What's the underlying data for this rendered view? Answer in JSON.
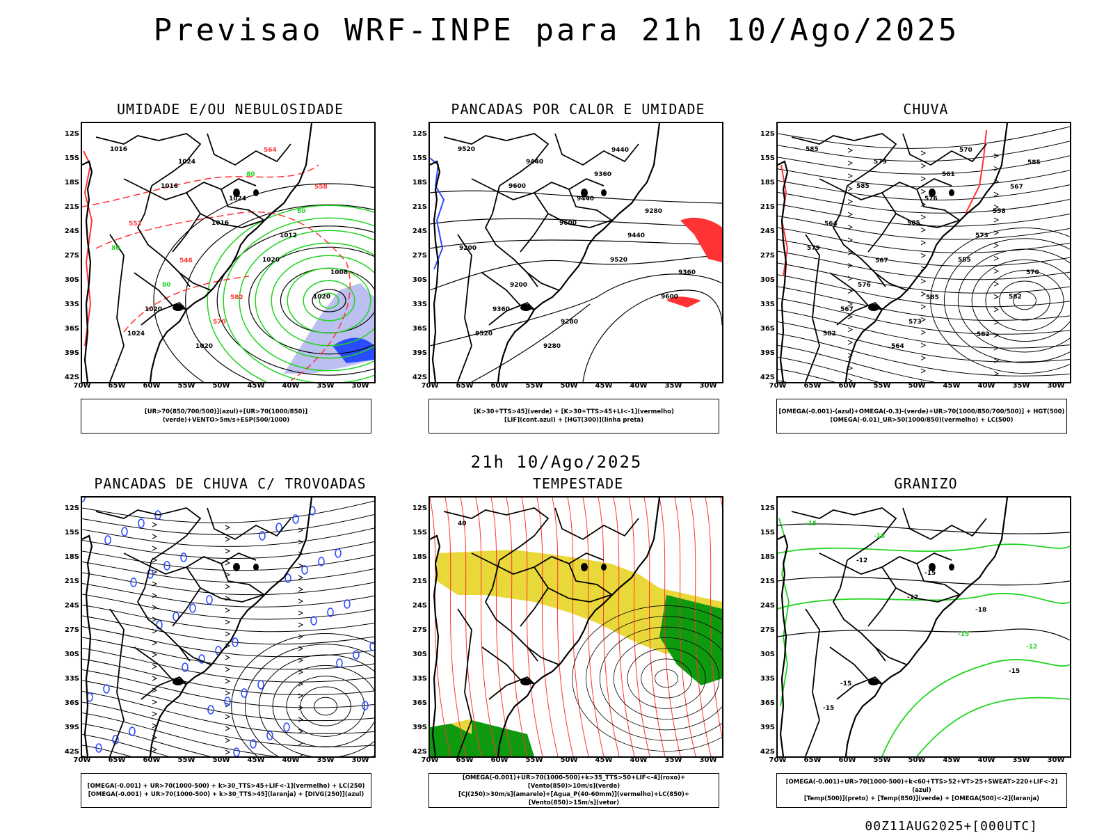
{
  "title": "Previsao WRF-INPE  para 21h 10/Ago/2025",
  "mid_title": "21h 10/Ago/2025",
  "footer": "00Z11AUG2025+[000UTC]",
  "lat_labels": [
    "12S",
    "15S",
    "18S",
    "21S",
    "24S",
    "27S",
    "30S",
    "33S",
    "36S",
    "39S",
    "42S"
  ],
  "lon_labels": [
    "70W",
    "65W",
    "60W",
    "55W",
    "50W",
    "45W",
    "40W",
    "35W",
    "30W"
  ],
  "colors": {
    "green": "#1fd41f",
    "red": "#ff3333",
    "blue": "#2a4bff",
    "lightblue": "#aab0ee",
    "yellow": "#e8d83a",
    "darkgreen": "#0e9a0e",
    "teal": "#1a5a55"
  },
  "panels": [
    {
      "id": "umidade",
      "title": "UMIDADE E/OU NEBULOSIDADE",
      "legend": [
        "[UR>70(850/700/500)](azul)+[UR>70(1000/850)](verde)+VENTO>5m/s+ESP(500/1000)"
      ],
      "contour_labels": [
        "1016",
        "1016",
        "1016",
        "1020",
        "1020",
        "1024",
        "1024",
        "1024",
        "1012",
        "1008",
        "1020",
        "1020",
        "80",
        "80",
        "80",
        "80",
        "570",
        "564",
        "558",
        "552",
        "546",
        "582"
      ]
    },
    {
      "id": "pancadas-calor",
      "title": "PANCADAS POR CALOR E UMIDADE",
      "legend": [
        "[K>30+TTS>45](verde) + [K>30+TTS>45+LI<-1](vermelho)",
        "[LIF](cont.azul) + [HGT(300)](linha preta)"
      ],
      "contour_labels": [
        "9520",
        "9600",
        "9600",
        "9520",
        "9600",
        "9520",
        "9440",
        "9440",
        "9440",
        "9360",
        "9360",
        "9280",
        "9360",
        "9280",
        "9200",
        "9200",
        "9280",
        "9440"
      ]
    },
    {
      "id": "chuva",
      "title": "CHUVA",
      "legend": [
        "[OMEGA(-0.001)-(azul)+OMEGA(-0.3)-(verde)+UR>70(1000/850/700/500)] + HGT(500)",
        "[OMEGA(-0.01)_UR>50(1000/850)(vermelho) + LC(500)"
      ],
      "contour_labels": [
        "585",
        "585",
        "585",
        "585",
        "582",
        "582",
        "579",
        "576",
        "573",
        "570",
        "567",
        "564",
        "561",
        "558",
        "579",
        "576",
        "573",
        "570",
        "567",
        "564",
        "567",
        "585",
        "582",
        "585"
      ]
    },
    {
      "id": "pancadas-trovoadas",
      "title": "PANCADAS DE CHUVA C/ TROVOADAS",
      "legend": [
        "[OMEGA(-0.001) + UR>70(1000-500) + k>30_TTS>45+LIF<-1](vermelho) + LC(250)",
        "[OMEGA(-0.001) + UR>70(1000-500) + k>30_TTS>45](laranja) + [DIVG(250)](azul)"
      ],
      "contour_labels": []
    },
    {
      "id": "tempestade",
      "title": "TEMPESTADE",
      "legend": [
        "[OMEGA(-0.001)+UR>70(1000-500)+k>35_TTS>50+LIF<-4](roxo)+[Vento(850)>10m/s](verde)",
        "[CJ(250)>30m/s](amarelo)+[Agua_P(40-60mm)](vermelho)+LC(850)+[Vento(850)>15m/s](vetor)"
      ],
      "contour_labels": [
        "40"
      ]
    },
    {
      "id": "granizo",
      "title": "GRANIZO",
      "legend": [
        "[OMEGA(-0.001)+UR>70(1000-500)+k<60+TTS>52+VT>25+SWEAT>220+LIF<-2](azul)",
        "[Temp(500)](preto) + [Temp(850)](verde) + [OMEGA(500)<-2](laranja)"
      ],
      "contour_labels": [
        "-15",
        "-12",
        "-12",
        "-15",
        "-15",
        "-15",
        "-18",
        "-15",
        "-18",
        "-12",
        "-15"
      ]
    }
  ]
}
